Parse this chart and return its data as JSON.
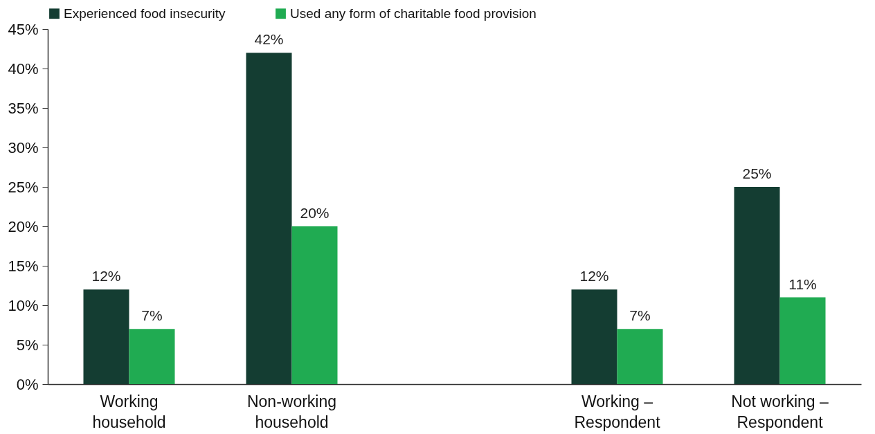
{
  "chart_data": {
    "type": "bar",
    "categories": [
      "Working household",
      "Non-working household",
      null,
      "Working – Respondent",
      "Not working – Respondent"
    ],
    "series": [
      {
        "name": "Experienced food insecurity",
        "color": "#143d32",
        "values": [
          12,
          42,
          null,
          12,
          25
        ],
        "value_labels": [
          "12%",
          "42%",
          null,
          "12%",
          "25%"
        ]
      },
      {
        "name": "Used any form of charitable food provision",
        "color": "#20ab52",
        "values": [
          7,
          20,
          null,
          7,
          11
        ],
        "value_labels": [
          "7%",
          "20%",
          null,
          "7%",
          "11%"
        ]
      }
    ],
    "ylim": [
      0,
      45
    ],
    "yticks": [
      {
        "value": 0,
        "label": "0%"
      },
      {
        "value": 5,
        "label": "5%"
      },
      {
        "value": 10,
        "label": "10%"
      },
      {
        "value": 15,
        "label": "15%"
      },
      {
        "value": 20,
        "label": "20%"
      },
      {
        "value": 25,
        "label": "25%"
      },
      {
        "value": 30,
        "label": "30%"
      },
      {
        "value": 35,
        "label": "35%"
      },
      {
        "value": 40,
        "label": "40%"
      },
      {
        "value": 45,
        "label": "45%"
      }
    ],
    "grid": false,
    "legend": "top"
  }
}
